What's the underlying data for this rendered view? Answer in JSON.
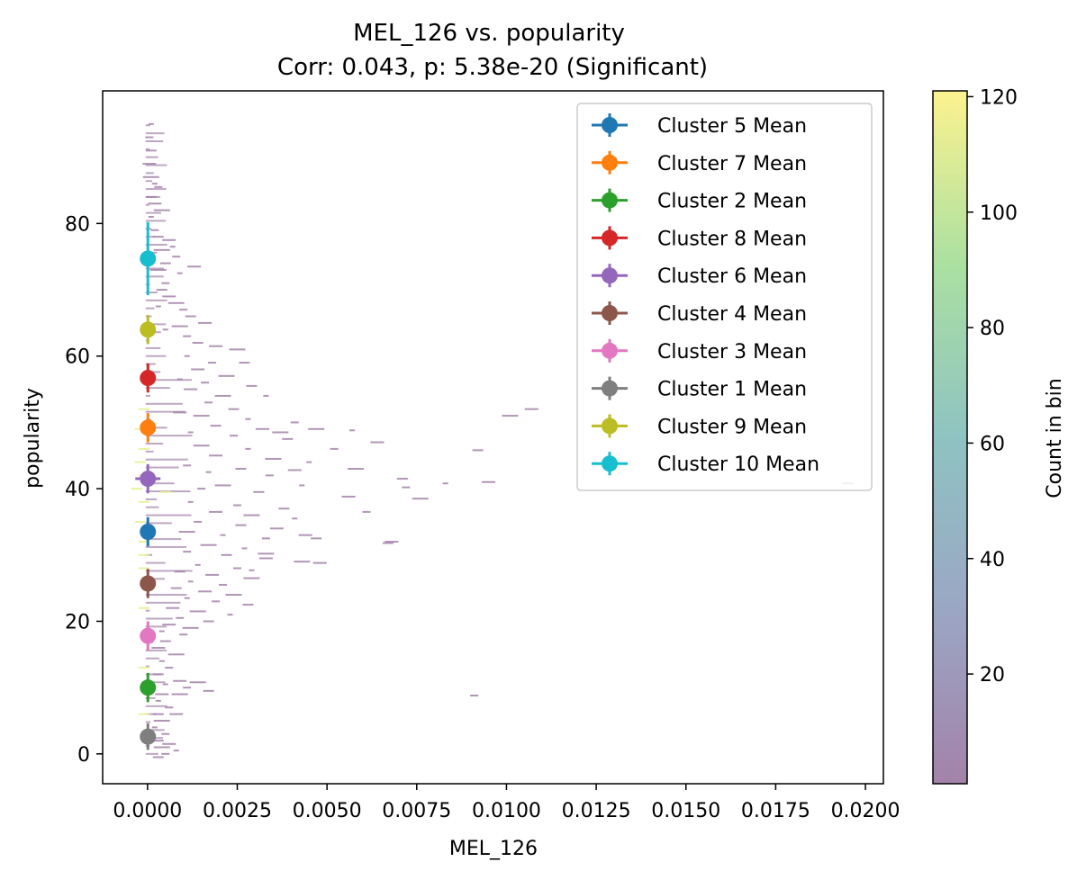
{
  "chart_data": {
    "type": "scatter",
    "title": "MEL_126 vs. popularity",
    "subtitle": "Corr: 0.043, p: 5.38e-20 (Significant)",
    "xlabel": "MEL_126",
    "ylabel": "popularity",
    "xlim": [
      -0.00125,
      0.0205
    ],
    "ylim": [
      -4.5,
      100
    ],
    "xticks": [
      0.0,
      0.0025,
      0.005,
      0.0075,
      0.01,
      0.0125,
      0.015,
      0.0175,
      0.02
    ],
    "xtick_labels": [
      "0.0000",
      "0.0025",
      "0.0050",
      "0.0075",
      "0.0100",
      "0.0125",
      "0.0150",
      "0.0175",
      "0.0200"
    ],
    "yticks": [
      0,
      20,
      40,
      60,
      80
    ],
    "ytick_labels": [
      "0",
      "20",
      "40",
      "60",
      "80"
    ],
    "legend_placement": "top-right",
    "grid": false,
    "series": [
      {
        "name": "Cluster 5 Mean",
        "x": 1e-05,
        "y": 33.5,
        "yerr": 2.2,
        "xerr": 0.00015,
        "color": "#1f77b4"
      },
      {
        "name": "Cluster 7 Mean",
        "x": 1e-05,
        "y": 49.2,
        "yerr": 2.2,
        "xerr": 0.00015,
        "color": "#ff7f0e"
      },
      {
        "name": "Cluster 2 Mean",
        "x": 1e-05,
        "y": 10.0,
        "yerr": 2.2,
        "xerr": 0.00015,
        "color": "#2ca02c"
      },
      {
        "name": "Cluster 8 Mean",
        "x": 1e-05,
        "y": 56.7,
        "yerr": 2.2,
        "xerr": 0.00015,
        "color": "#d62728"
      },
      {
        "name": "Cluster 6 Mean",
        "x": 1e-05,
        "y": 41.5,
        "yerr": 2.2,
        "xerr": 0.00035,
        "color": "#9467bd"
      },
      {
        "name": "Cluster 4 Mean",
        "x": 1e-05,
        "y": 25.7,
        "yerr": 2.2,
        "xerr": 0.00015,
        "color": "#8c564b"
      },
      {
        "name": "Cluster 3 Mean",
        "x": 1e-05,
        "y": 17.8,
        "yerr": 2.2,
        "xerr": 0.00015,
        "color": "#e377c2"
      },
      {
        "name": "Cluster 1 Mean",
        "x": 1e-05,
        "y": 2.6,
        "yerr": 2.0,
        "xerr": 0.00015,
        "color": "#7f7f7f"
      },
      {
        "name": "Cluster 9 Mean",
        "x": 1e-05,
        "y": 64.0,
        "yerr": 2.2,
        "xerr": 0.00015,
        "color": "#bcbd22"
      },
      {
        "name": "Cluster 10 Mean",
        "x": 1e-05,
        "y": 74.7,
        "yerr": 5.5,
        "xerr": 8e-05,
        "color": "#17becf"
      }
    ],
    "colorbar": {
      "label": "Count in bin",
      "range": [
        1,
        121
      ],
      "ticks": [
        20,
        40,
        60,
        80,
        100,
        120
      ],
      "tick_labels": [
        "20",
        "40",
        "60",
        "80",
        "100",
        "120"
      ],
      "colormap": "viridis",
      "alpha": 0.5
    },
    "hexbin_cells": [
      [
        0.0001,
        95
      ],
      [
        5e-05,
        93
      ],
      [
        0.0001,
        91
      ],
      [
        5e-05,
        89
      ],
      [
        0.0001,
        87
      ],
      [
        0.0002,
        86
      ],
      [
        0.0003,
        85.5
      ],
      [
        0.0001,
        84
      ],
      [
        0.0002,
        83
      ],
      [
        0.0004,
        82
      ],
      [
        0.0001,
        81
      ],
      [
        0.0002,
        79
      ],
      [
        0.0003,
        78
      ],
      [
        0.0006,
        77.5
      ],
      [
        0.0004,
        76
      ],
      [
        0.0007,
        76.5
      ],
      [
        0.0008,
        75
      ],
      [
        0.0005,
        74
      ],
      [
        0.0013,
        73.5
      ],
      [
        0.0003,
        73
      ],
      [
        0.0009,
        72.5
      ],
      [
        0.0005,
        71
      ],
      [
        0.0004,
        70
      ],
      [
        0.0006,
        69
      ],
      [
        0.0008,
        68
      ],
      [
        0.0003,
        67.5
      ],
      [
        0.001,
        67
      ],
      [
        0.0012,
        66
      ],
      [
        0.0016,
        65
      ],
      [
        0.0009,
        64.5
      ],
      [
        0.0005,
        64
      ],
      [
        0.0011,
        63
      ],
      [
        0.0014,
        62
      ],
      [
        0.0019,
        61.5
      ],
      [
        0.0025,
        61
      ],
      [
        0.0011,
        60
      ],
      [
        0.0018,
        59
      ],
      [
        0.0027,
        59
      ],
      [
        0.0014,
        58
      ],
      [
        0.0022,
        57
      ],
      [
        0.0009,
        56.5
      ],
      [
        0.0016,
        56
      ],
      [
        0.0029,
        55.5
      ],
      [
        0.0012,
        55
      ],
      [
        0.0021,
        54
      ],
      [
        0.0033,
        54
      ],
      [
        0.0017,
        53
      ],
      [
        0.0024,
        52
      ],
      [
        0.0009,
        51.5
      ],
      [
        0.0015,
        51
      ],
      [
        0.0028,
        50.5
      ],
      [
        0.0041,
        50
      ],
      [
        0.0019,
        49.5
      ],
      [
        0.0032,
        49
      ],
      [
        0.0047,
        49
      ],
      [
        0.0012,
        48.5
      ],
      [
        0.0024,
        48
      ],
      [
        0.0039,
        47.5
      ],
      [
        0.0064,
        47
      ],
      [
        0.0015,
        46.5
      ],
      [
        0.0028,
        46
      ],
      [
        0.0052,
        46
      ],
      [
        0.0092,
        45.8
      ],
      [
        0.0019,
        45
      ],
      [
        0.0035,
        44.5
      ],
      [
        0.0045,
        44
      ],
      [
        0.0011,
        43.5
      ],
      [
        0.0026,
        43
      ],
      [
        0.0041,
        42.8
      ],
      [
        0.0058,
        43
      ],
      [
        0.0017,
        42.5
      ],
      [
        0.0034,
        42
      ],
      [
        0.0071,
        41.5
      ],
      [
        0.0095,
        41
      ],
      [
        0.0021,
        40.5
      ],
      [
        0.0043,
        40.5
      ],
      [
        0.0015,
        40
      ],
      [
        0.0031,
        39.5
      ],
      [
        0.0056,
        38.8
      ],
      [
        0.0076,
        38.5
      ],
      [
        0.0012,
        38
      ],
      [
        0.0025,
        37.5
      ],
      [
        0.0038,
        37
      ],
      [
        0.0019,
        36.5
      ],
      [
        0.0029,
        36
      ],
      [
        0.0041,
        35.5
      ],
      [
        0.0014,
        35
      ],
      [
        0.0026,
        34.5
      ],
      [
        0.0036,
        34
      ],
      [
        0.0011,
        33.5
      ],
      [
        0.0021,
        33
      ],
      [
        0.0033,
        32.5
      ],
      [
        0.0047,
        32.5
      ],
      [
        0.0068,
        32
      ],
      [
        0.0017,
        31.5
      ],
      [
        0.0027,
        31
      ],
      [
        0.0011,
        30.5
      ],
      [
        0.0022,
        30
      ],
      [
        0.0033,
        29.5
      ],
      [
        0.0043,
        29
      ],
      [
        0.0014,
        28.5
      ],
      [
        0.0025,
        28
      ],
      [
        0.0009,
        27.5
      ],
      [
        0.0018,
        27
      ],
      [
        0.0029,
        26.5
      ],
      [
        0.0012,
        26
      ],
      [
        0.0021,
        25.5
      ],
      [
        0.0008,
        25
      ],
      [
        0.0016,
        24.5
      ],
      [
        0.0024,
        24
      ],
      [
        0.0011,
        23.5
      ],
      [
        0.0019,
        23
      ],
      [
        0.0028,
        22.5
      ],
      [
        0.0007,
        22
      ],
      [
        0.0014,
        21.5
      ],
      [
        0.0023,
        21
      ],
      [
        0.0009,
        20.5
      ],
      [
        0.0017,
        20
      ],
      [
        0.0006,
        19.5
      ],
      [
        0.0012,
        19
      ],
      [
        0.0004,
        18.5
      ],
      [
        0.001,
        18
      ],
      [
        0.0005,
        17
      ],
      [
        0.0003,
        16
      ],
      [
        0.0008,
        15
      ],
      [
        0.0004,
        14
      ],
      [
        0.0006,
        13
      ],
      [
        0.0003,
        12
      ],
      [
        0.0009,
        11
      ],
      [
        0.0014,
        10.8
      ],
      [
        0.0005,
        10.5
      ],
      [
        0.0011,
        10
      ],
      [
        0.0017,
        9.5
      ],
      [
        0.0004,
        9
      ],
      [
        0.0009,
        9
      ],
      [
        0.0003,
        8
      ],
      [
        0.0006,
        7
      ],
      [
        0.0003,
        6
      ],
      [
        0.0008,
        6
      ],
      [
        0.0004,
        5
      ],
      [
        0.0002,
        4
      ],
      [
        0.0005,
        3
      ],
      [
        0.0003,
        2
      ],
      [
        0.0006,
        1.5
      ],
      [
        0.0004,
        1
      ],
      [
        0.0008,
        0.5
      ],
      [
        0.0005,
        0
      ],
      [
        0.0003,
        -0.5
      ],
      [
        0.0107,
        52
      ],
      [
        0.0101,
        51
      ],
      [
        0.0083,
        40.8
      ],
      [
        0.0072,
        40.2
      ],
      [
        0.0067,
        31.8
      ],
      [
        0.0044,
        33
      ],
      [
        0.0033,
        30.2
      ],
      [
        0.0029,
        27.7
      ],
      [
        0.0091,
        8.8
      ],
      [
        0.0195,
        40.8
      ],
      [
        0.0048,
        28.8
      ],
      [
        0.0037,
        48.5
      ],
      [
        0.0057,
        48.8
      ],
      [
        0.0061,
        36.5
      ]
    ],
    "bright_cells": [
      [
        -0.0001,
        52
      ],
      [
        -0.0002,
        49
      ],
      [
        -0.0001,
        46
      ],
      [
        -0.0002,
        44
      ],
      [
        -0.0001,
        42
      ],
      [
        -0.0003,
        40
      ],
      [
        0.0005,
        39.5
      ],
      [
        -0.0001,
        38
      ],
      [
        -0.0002,
        35
      ],
      [
        -0.0001,
        32
      ],
      [
        -0.0001,
        30
      ],
      [
        -0.0001,
        28
      ],
      [
        -0.0001,
        22
      ],
      [
        -0.0001,
        13
      ],
      [
        -0.0001,
        6
      ]
    ]
  }
}
